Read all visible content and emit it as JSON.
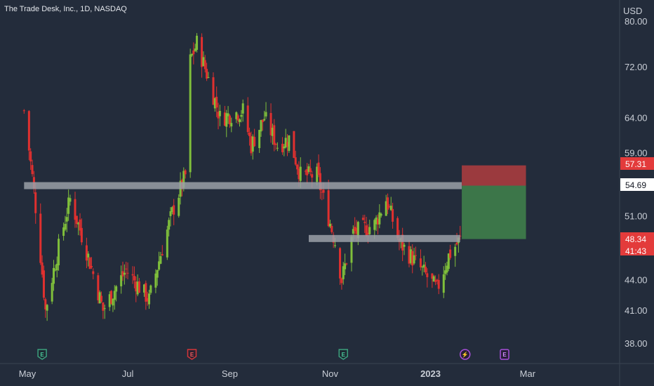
{
  "header": {
    "symbol_title": "The Trade Desk, Inc., 1D, NASDAQ"
  },
  "currency": "USD",
  "colors": {
    "background": "#232c3b",
    "up": "#7fbf3b",
    "down": "#e0302f",
    "level_band": "#9aa0a8",
    "stop_zone": "#a23b3e",
    "target_zone": "#3e7a4a",
    "price_badge_red": "#e33b3b"
  },
  "chart_data": {
    "type": "candlestick",
    "title": "The Trade Desk, Inc., 1D, NASDAQ",
    "y_ticks": [
      "80.00",
      "72.00",
      "64.00",
      "59.00",
      "51.00",
      "44.00",
      "41.00",
      "38.00"
    ],
    "y_tick_values": [
      80,
      72,
      64,
      59,
      51,
      44,
      41,
      38
    ],
    "y_scale": "log",
    "ylim": [
      35.5,
      82
    ],
    "x_ticks": [
      "May",
      "Jul",
      "Sep",
      "Nov",
      "2023",
      "Mar"
    ],
    "price_labels": [
      {
        "value": "57.31",
        "style": "red"
      },
      {
        "value": "54.69",
        "style": "white"
      },
      {
        "value": "48.34",
        "style": "red"
      },
      {
        "value": "41:43",
        "style": "red-sub"
      }
    ],
    "support_resistance_levels": [
      {
        "price": 54.69,
        "from": "2022-04-29",
        "to": "2023-01-20"
      },
      {
        "price": 48.4,
        "from": "2022-10-19",
        "to": "2023-01-19"
      }
    ],
    "position": {
      "type": "long",
      "stop": 57.31,
      "entry": 54.69,
      "target": 48.34,
      "from": "2023-01-20",
      "to": "2023-02-28"
    },
    "event_markers": [
      {
        "date": "2022-05-10",
        "label": "E",
        "kind": "earnings"
      },
      {
        "date": "2022-08-09",
        "label": "E",
        "kind": "earnings-negative"
      },
      {
        "date": "2022-11-09",
        "label": "E",
        "kind": "earnings"
      },
      {
        "date": "2023-01-22",
        "label": "⚡",
        "kind": "split"
      },
      {
        "date": "2023-02-15",
        "label": "E",
        "kind": "upcoming-earnings"
      }
    ],
    "key_points": [
      {
        "date": "2022-04-29",
        "price": 65
      },
      {
        "date": "2022-05-12",
        "price": 41
      },
      {
        "date": "2022-05-27",
        "price": 53
      },
      {
        "date": "2022-06-16",
        "price": 41
      },
      {
        "date": "2022-06-30",
        "price": 45
      },
      {
        "date": "2022-07-14",
        "price": 42
      },
      {
        "date": "2022-07-29",
        "price": 52
      },
      {
        "date": "2022-08-05",
        "price": 56
      },
      {
        "date": "2022-08-08",
        "price": 73
      },
      {
        "date": "2022-08-12",
        "price": 76
      },
      {
        "date": "2022-08-26",
        "price": 64
      },
      {
        "date": "2022-09-09",
        "price": 65
      },
      {
        "date": "2022-09-14",
        "price": 60
      },
      {
        "date": "2022-09-22",
        "price": 64
      },
      {
        "date": "2022-09-30",
        "price": 60
      },
      {
        "date": "2022-10-07",
        "price": 61
      },
      {
        "date": "2022-10-14",
        "price": 56
      },
      {
        "date": "2022-10-24",
        "price": 56
      },
      {
        "date": "2022-10-28",
        "price": 53
      },
      {
        "date": "2022-11-04",
        "price": 48
      },
      {
        "date": "2022-11-08",
        "price": 44
      },
      {
        "date": "2022-11-15",
        "price": 49
      },
      {
        "date": "2022-11-28",
        "price": 50
      },
      {
        "date": "2022-12-05",
        "price": 53
      },
      {
        "date": "2022-12-13",
        "price": 48
      },
      {
        "date": "2022-12-22",
        "price": 46
      },
      {
        "date": "2023-01-05",
        "price": 43
      },
      {
        "date": "2023-01-12",
        "price": 46.5
      },
      {
        "date": "2023-01-19",
        "price": 48.3
      }
    ],
    "grid": false,
    "legend": "none"
  }
}
